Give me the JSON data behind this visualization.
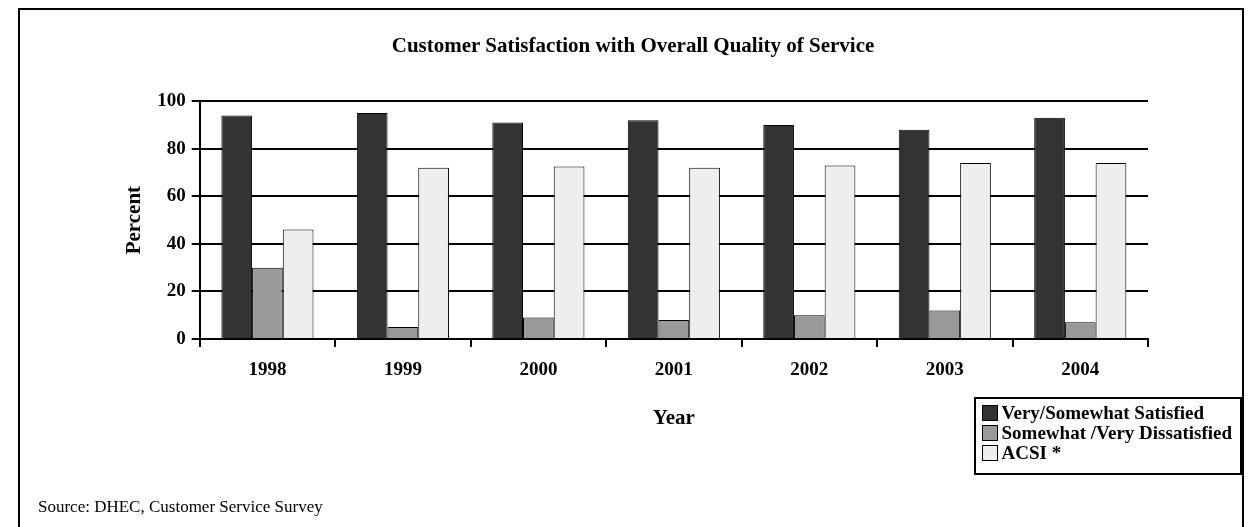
{
  "chart_data": {
    "type": "bar",
    "title": "Customer Satisfaction with Overall Quality of Service",
    "xlabel": "Year",
    "ylabel": "Percent",
    "categories": [
      "1998",
      "1999",
      "2000",
      "2001",
      "2002",
      "2003",
      "2004"
    ],
    "series": [
      {
        "name": "Very/Somewhat Satisfied",
        "color": "#333333",
        "values": [
          94,
          95,
          91,
          92,
          90,
          88,
          93
        ]
      },
      {
        "name": "Somewhat /Very Dissatisfied",
        "color": "#999999",
        "values": [
          30,
          5,
          9,
          8,
          10,
          12,
          7
        ]
      },
      {
        "name": "ACSI *",
        "color": "#eeeeee",
        "values": [
          46,
          72,
          72.5,
          72,
          73,
          74,
          74
        ]
      }
    ],
    "ylim": [
      0,
      100
    ],
    "yticks": [
      0,
      20,
      40,
      60,
      80,
      100
    ],
    "grid": "y",
    "legend": "bottom right",
    "annotations": [
      "Source: DHEC, Customer Service Survey"
    ]
  }
}
